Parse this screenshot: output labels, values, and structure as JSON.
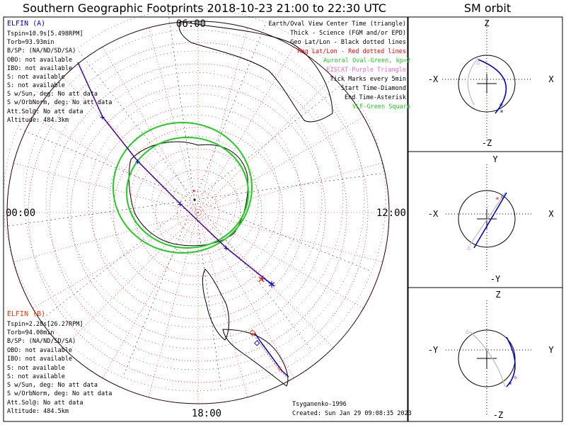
{
  "title": "Southern Geographic Footprints 2018-10-23 21:00 to 22:30 UTC",
  "sm_title": "SM orbit",
  "chart_data": [
    {
      "type": "scatter",
      "name": "southern-footprints-map",
      "projection": "polar, south pole centered, 10-degree rings",
      "local_time_labels": {
        "top": "06:00",
        "left": "00:00",
        "right": "12:00",
        "bottom": "18:00"
      },
      "legend": [
        {
          "text": "Earth/Oval View Center Time (triangle)",
          "color": "#000000"
        },
        {
          "text": "Thick - Science (FGM and/or EPD)",
          "color": "#000000"
        },
        {
          "text": "Geo Lat/Lon - Black dotted lines",
          "color": "#000000"
        },
        {
          "text": "Mag Lat/Lon - Red dotted lines",
          "color": "#ff0000"
        },
        {
          "text": "Auroral Oval-Green, kp=2",
          "color": "#22cc22"
        },
        {
          "text": "EISCAT-Purple Triangle",
          "color": "#ff66cc"
        },
        {
          "text": "Tick Marks every 5min",
          "color": "#000000"
        },
        {
          "text": "Start Time-Diamond",
          "color": "#000000"
        },
        {
          "text": "End Time-Asterisk",
          "color": "#000000"
        },
        {
          "text": "VLF-Green Square",
          "color": "#22cc22"
        }
      ],
      "probe_a": {
        "label": "ELFIN (A)",
        "color": "#0000cc",
        "lines": [
          "Tspin=10.9s[5.498RPM]",
          "Torb=93.93min",
          "B/SP: (NA/ND/SD/SA)",
          "OBO: not available",
          "IBO: not available",
          "S: not available",
          "S: not available",
          "S w/Sun, deg: No att data",
          "S w/OrbNorm, deg: No att data",
          "Att.Sol@: No att data",
          "Altitude: 484.3km"
        ],
        "track_lon": [
          60,
          62,
          65,
          72,
          85,
          110,
          150,
          175,
          190,
          196,
          200
        ],
        "track_colat": [
          55,
          50,
          45,
          37,
          28,
          15,
          15,
          28,
          40,
          45,
          50
        ]
      },
      "probe_b": {
        "label": "ELFIN (B)",
        "color": "#ff3300",
        "lines": [
          "Tspin=2.28s[26.27RPM]",
          "Torb=94.00min",
          "B/SP: (NA/ND/SD/SA)",
          "OBO: not available",
          "IBO: not available",
          "S: not available",
          "S: not available",
          "S w/Sun, deg: No att data",
          "S w/OrbNorm, deg: No att data",
          "Att.Sol@: No att data",
          "Altitude: 484.5km"
        ],
        "track_lon": [
          212,
          209,
          204,
          200
        ],
        "track_colat": [
          47,
          52,
          58,
          62
        ]
      },
      "auroral_oval_kp": 2,
      "footer": {
        "model": "Tsyganenko-1996",
        "created": "Created: Sun Jan 29 09:08:35 2023"
      }
    },
    {
      "type": "line",
      "name": "sm-orbit-xz",
      "axes": {
        "top": "Z",
        "bottom": "-Z",
        "left": "-X",
        "right": "X"
      }
    },
    {
      "type": "line",
      "name": "sm-orbit-xy",
      "axes": {
        "top": "Y",
        "bottom": "-Y",
        "left": "-X",
        "right": "X"
      }
    },
    {
      "type": "line",
      "name": "sm-orbit-yz",
      "axes": {
        "top": "Z",
        "bottom": "-Z",
        "left": "-Y",
        "right": "Y"
      }
    }
  ]
}
